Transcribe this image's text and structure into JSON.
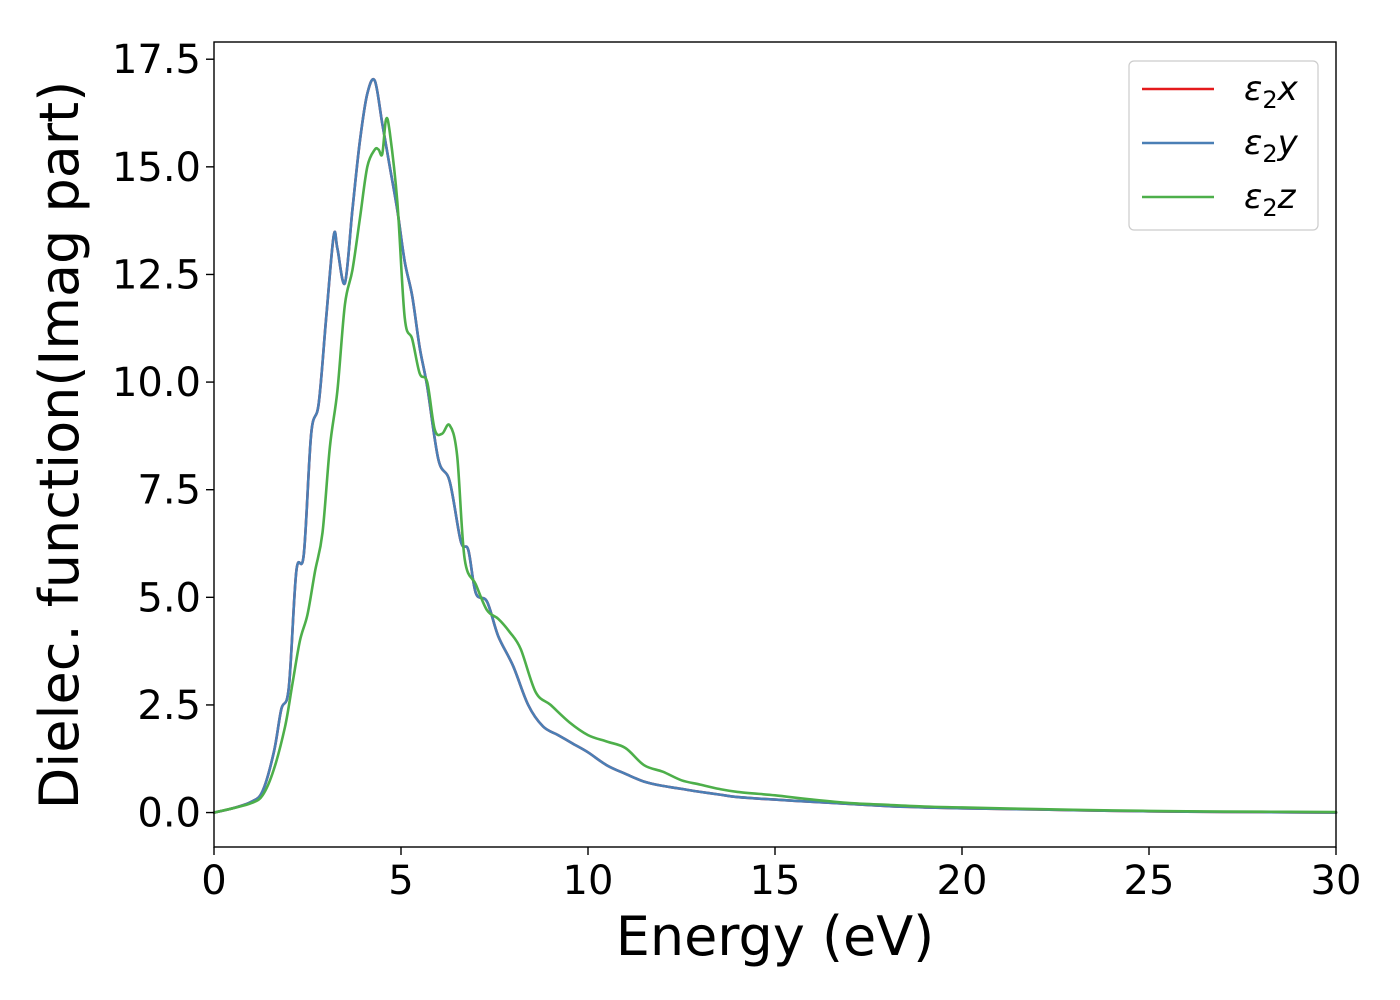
{
  "chart_data": {
    "type": "line",
    "title": "",
    "xlabel": "Energy (eV)",
    "ylabel": "Dielec. function(Imag part)",
    "xlim": [
      0,
      30
    ],
    "ylim": [
      -0.8,
      17.9
    ],
    "xticks": [
      0,
      5,
      10,
      15,
      20,
      25,
      30
    ],
    "xtick_labels": [
      "0",
      "5",
      "10",
      "15",
      "20",
      "25",
      "30"
    ],
    "yticks": [
      0,
      2.5,
      5,
      7.5,
      10,
      12.5,
      15,
      17.5
    ],
    "ytick_labels": [
      "0.0",
      "2.5",
      "5.0",
      "7.5",
      "10.0",
      "12.5",
      "15.0",
      "17.5"
    ],
    "grid": false,
    "legend_position": "top-right",
    "series": [
      {
        "name": "ε₂x",
        "legend_base": "ε",
        "legend_sub": "2",
        "legend_var": "x",
        "color": "#e41a1c",
        "x": [
          0,
          0.5,
          1.0,
          1.3,
          1.6,
          1.8,
          2.0,
          2.2,
          2.4,
          2.6,
          2.8,
          3.0,
          3.2,
          3.3,
          3.5,
          3.7,
          3.9,
          4.1,
          4.3,
          4.5,
          4.7,
          4.9,
          5.1,
          5.3,
          5.5,
          5.7,
          6.0,
          6.3,
          6.6,
          6.8,
          7.0,
          7.3,
          7.6,
          8.0,
          8.4,
          8.8,
          9.2,
          9.6,
          10.0,
          10.5,
          11.0,
          11.5,
          12.0,
          12.5,
          13.0,
          13.5,
          14.0,
          15.0,
          16.0,
          17.0,
          18.0,
          19.0,
          20.0,
          22.0,
          24.0,
          26.0,
          28.0,
          30.0
        ],
        "y": [
          0.0,
          0.1,
          0.25,
          0.5,
          1.4,
          2.4,
          2.9,
          5.6,
          6.0,
          8.8,
          9.5,
          11.5,
          13.4,
          13.1,
          12.3,
          14.0,
          15.6,
          16.7,
          17.0,
          16.0,
          15.0,
          14.0,
          12.8,
          12.0,
          10.8,
          9.9,
          8.2,
          7.7,
          6.3,
          6.1,
          5.1,
          4.9,
          4.1,
          3.4,
          2.5,
          2.0,
          1.8,
          1.6,
          1.4,
          1.1,
          0.9,
          0.72,
          0.62,
          0.55,
          0.48,
          0.42,
          0.36,
          0.3,
          0.25,
          0.2,
          0.15,
          0.12,
          0.1,
          0.07,
          0.04,
          0.02,
          0.01,
          0.0
        ]
      },
      {
        "name": "ε₂y",
        "legend_base": "ε",
        "legend_sub": "2",
        "legend_var": "y",
        "color": "#4a7fb5",
        "x": [
          0,
          0.5,
          1.0,
          1.3,
          1.6,
          1.8,
          2.0,
          2.2,
          2.4,
          2.6,
          2.8,
          3.0,
          3.2,
          3.3,
          3.5,
          3.7,
          3.9,
          4.1,
          4.3,
          4.5,
          4.7,
          4.9,
          5.1,
          5.3,
          5.5,
          5.7,
          6.0,
          6.3,
          6.6,
          6.8,
          7.0,
          7.3,
          7.6,
          8.0,
          8.4,
          8.8,
          9.2,
          9.6,
          10.0,
          10.5,
          11.0,
          11.5,
          12.0,
          12.5,
          13.0,
          13.5,
          14.0,
          15.0,
          16.0,
          17.0,
          18.0,
          19.0,
          20.0,
          22.0,
          24.0,
          26.0,
          28.0,
          30.0
        ],
        "y": [
          0.0,
          0.1,
          0.25,
          0.5,
          1.4,
          2.4,
          2.9,
          5.6,
          6.0,
          8.8,
          9.5,
          11.5,
          13.4,
          13.1,
          12.3,
          14.0,
          15.6,
          16.7,
          17.0,
          16.0,
          15.0,
          14.0,
          12.8,
          12.0,
          10.8,
          9.9,
          8.2,
          7.7,
          6.3,
          6.1,
          5.1,
          4.9,
          4.1,
          3.4,
          2.5,
          2.0,
          1.8,
          1.6,
          1.4,
          1.1,
          0.9,
          0.72,
          0.62,
          0.55,
          0.48,
          0.42,
          0.36,
          0.3,
          0.25,
          0.2,
          0.15,
          0.12,
          0.1,
          0.07,
          0.04,
          0.02,
          0.01,
          0.0
        ]
      },
      {
        "name": "ε₂z",
        "legend_base": "ε",
        "legend_sub": "2",
        "legend_var": "z",
        "color": "#4daf4a",
        "x": [
          0,
          0.5,
          1.0,
          1.3,
          1.6,
          1.9,
          2.1,
          2.3,
          2.5,
          2.7,
          2.9,
          3.1,
          3.3,
          3.5,
          3.7,
          3.9,
          4.1,
          4.3,
          4.4,
          4.5,
          4.6,
          4.7,
          4.9,
          5.1,
          5.3,
          5.5,
          5.7,
          5.9,
          6.1,
          6.3,
          6.5,
          6.7,
          7.0,
          7.3,
          7.6,
          7.9,
          8.2,
          8.6,
          9.0,
          9.5,
          10.0,
          10.5,
          11.0,
          11.5,
          12.0,
          12.5,
          13.0,
          13.5,
          14.0,
          15.0,
          16.0,
          17.0,
          18.0,
          19.0,
          20.0,
          22.0,
          24.0,
          26.0,
          28.0,
          30.0
        ],
        "y": [
          0.0,
          0.1,
          0.22,
          0.4,
          1.0,
          2.0,
          3.0,
          4.0,
          4.6,
          5.6,
          6.5,
          8.5,
          9.8,
          11.8,
          12.6,
          13.8,
          15.0,
          15.4,
          15.4,
          15.3,
          16.1,
          15.8,
          14.2,
          11.5,
          11.0,
          10.2,
          10.0,
          8.9,
          8.8,
          9.0,
          8.3,
          5.9,
          5.3,
          4.7,
          4.5,
          4.2,
          3.8,
          2.8,
          2.5,
          2.1,
          1.8,
          1.65,
          1.5,
          1.1,
          0.95,
          0.75,
          0.65,
          0.55,
          0.48,
          0.4,
          0.3,
          0.22,
          0.18,
          0.14,
          0.12,
          0.08,
          0.05,
          0.03,
          0.02,
          0.01
        ]
      }
    ]
  }
}
